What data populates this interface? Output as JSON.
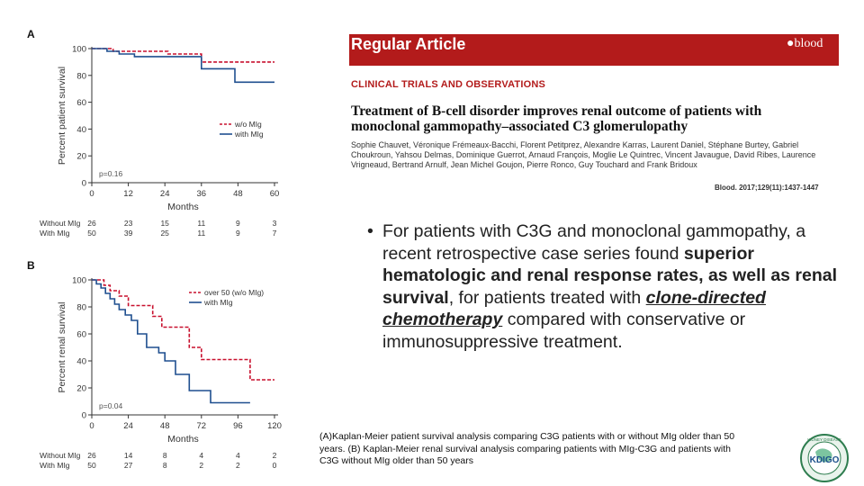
{
  "panel_a": {
    "letter": "A"
  },
  "panel_b": {
    "letter": "B"
  },
  "article": {
    "banner_title": "Regular Article",
    "journal_logo": "●blood",
    "section": "CLINICAL TRIALS AND OBSERVATIONS",
    "title_line1": "Treatment of B-cell disorder improves renal outcome of patients with",
    "title_line2": "monoclonal gammopathy–associated C3 glomerulopathy",
    "authors": "Sophie Chauvet, Véronique Frémeaux-Bacchi, Florent Petitprez, Alexandre Karras, Laurent Daniel, Stéphane Burtey, Gabriel Choukroun, Yahsou Delmas, Dominique Guerrot, Arnaud François, Moglie Le Quintrec, Vincent Javaugue, David Ribes, Laurence Vrigneaud, Bertrand Arnulf, Jean Michel Goujon, Pierre Ronco, Guy Touchard and Frank Bridoux",
    "citation": "Blood. 2017;129(11):1437-1447"
  },
  "bullet": {
    "seg1": "For patients with C3G and monoclonal gammopathy, a recent retrospective case series found ",
    "seg2": "superior hematologic and renal response rates, as well as renal survival",
    "seg3": ", for patients treated with ",
    "seg4": "clone-directed chemotherapy",
    "seg5": " compared with conservative or immunosuppressive treatment."
  },
  "caption": "(A)Kaplan-Meier patient survival analysis comparing C3G patients with or without MIg older than 50 years. (B) Kaplan-Meier renal survival analysis comparing patients with MIg-C3G and patients with C3G without MIg older than 50 years",
  "logo": {
    "text": "KDIGO",
    "ring_text": "KIDNEY DISEASE"
  },
  "colors": {
    "red": "#c8102e",
    "blue": "#1f4f8f",
    "banner": "#b31b1b"
  },
  "chart_data": [
    {
      "type": "line",
      "panel": "A",
      "ylabel": "Percent patient survival",
      "xlabel": "Months",
      "xlim": [
        0,
        60
      ],
      "ylim": [
        0,
        100
      ],
      "xticks": [
        0,
        12,
        24,
        36,
        48,
        60
      ],
      "yticks": [
        0,
        20,
        40,
        60,
        80,
        100
      ],
      "legend_position": "center-right",
      "pvalue": "p=0.16",
      "series": [
        {
          "name": "w/o MIg",
          "color": "#c8102e",
          "dashed": true,
          "x": [
            0,
            7,
            7,
            25,
            25,
            36,
            36,
            60
          ],
          "y": [
            100,
            100,
            98,
            98,
            96,
            96,
            90,
            90
          ]
        },
        {
          "name": "with MIg",
          "color": "#1f4f8f",
          "dashed": false,
          "x": [
            0,
            5,
            5,
            9,
            9,
            14,
            14,
            36,
            36,
            47,
            47,
            60
          ],
          "y": [
            100,
            100,
            98,
            98,
            96,
            96,
            94,
            94,
            85,
            85,
            75,
            75
          ]
        }
      ],
      "risk_table": {
        "rows": [
          {
            "label": "Without MIg",
            "n": "26",
            "values": [
              "23",
              "15",
              "11",
              "9",
              "3"
            ]
          },
          {
            "label": "With MIg",
            "n": "50",
            "values": [
              "39",
              "25",
              "11",
              "9",
              "7"
            ]
          }
        ]
      }
    },
    {
      "type": "line",
      "panel": "B",
      "ylabel": "Percent renal survival",
      "xlabel": "Months",
      "xlim": [
        0,
        120
      ],
      "ylim": [
        0,
        100
      ],
      "xticks": [
        0,
        24,
        48,
        72,
        96,
        120
      ],
      "yticks": [
        0,
        20,
        40,
        60,
        80,
        100
      ],
      "legend_position": "top-right",
      "pvalue": "p=0.04",
      "series": [
        {
          "name": "over 50 (w/o MIg)",
          "color": "#c8102e",
          "dashed": true,
          "x": [
            0,
            8,
            8,
            12,
            12,
            18,
            18,
            24,
            24,
            40,
            40,
            46,
            46,
            64,
            64,
            72,
            72,
            104,
            104,
            120
          ],
          "y": [
            100,
            100,
            96,
            96,
            92,
            92,
            88,
            88,
            81,
            81,
            73,
            73,
            65,
            65,
            50,
            50,
            41,
            41,
            26,
            26
          ]
        },
        {
          "name": "with MIg",
          "color": "#1f4f8f",
          "dashed": false,
          "x": [
            0,
            3,
            3,
            6,
            6,
            9,
            9,
            12,
            12,
            15,
            15,
            18,
            18,
            22,
            22,
            26,
            26,
            30,
            30,
            36,
            36,
            44,
            44,
            48,
            48,
            55,
            55,
            64,
            64,
            78,
            78,
            104
          ],
          "y": [
            100,
            100,
            97,
            97,
            94,
            94,
            90,
            90,
            86,
            86,
            82,
            82,
            78,
            78,
            74,
            74,
            70,
            70,
            60,
            60,
            50,
            50,
            46,
            46,
            40,
            40,
            30,
            30,
            18,
            18,
            9,
            9
          ]
        }
      ],
      "risk_table": {
        "rows": [
          {
            "label": "Without MIg",
            "n": "26",
            "values": [
              "14",
              "8",
              "4",
              "4",
              "2"
            ]
          },
          {
            "label": "With MIg",
            "n": "50",
            "values": [
              "27",
              "8",
              "2",
              "2",
              "0"
            ]
          }
        ]
      }
    }
  ]
}
